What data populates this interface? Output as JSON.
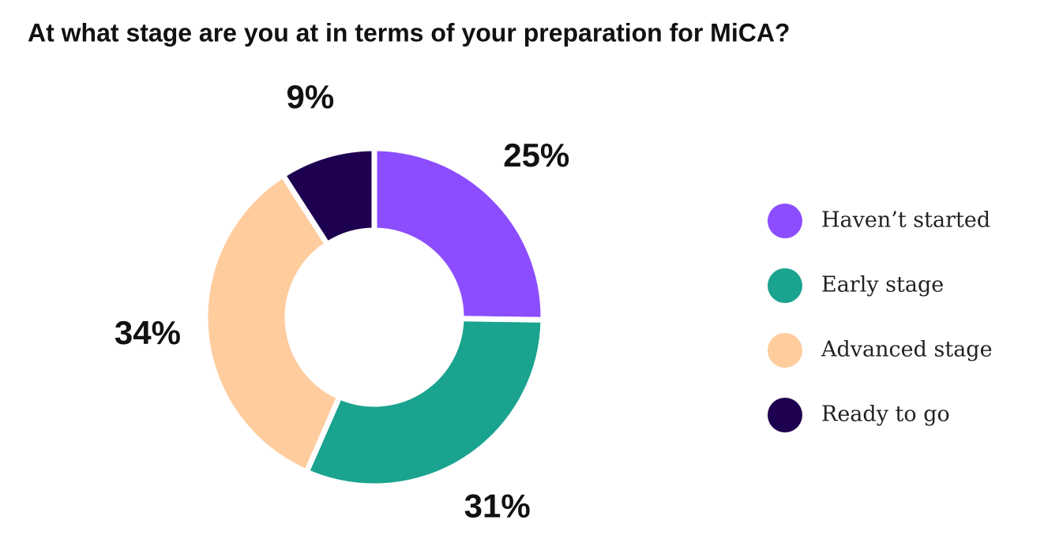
{
  "chart_data": {
    "type": "donut",
    "title": "At what stage are you at in terms of your preparation for MiCA?",
    "categories": [
      "Haven’t started",
      "Early stage",
      "Advanced stage",
      "Ready to go"
    ],
    "values": [
      25,
      31,
      34,
      9
    ],
    "value_labels": [
      "25%",
      "31%",
      "34%",
      "9%"
    ],
    "colors": [
      "#8c4dff",
      "#1aa38f",
      "#ffcc9e",
      "#1e0050"
    ],
    "legend": "right"
  }
}
